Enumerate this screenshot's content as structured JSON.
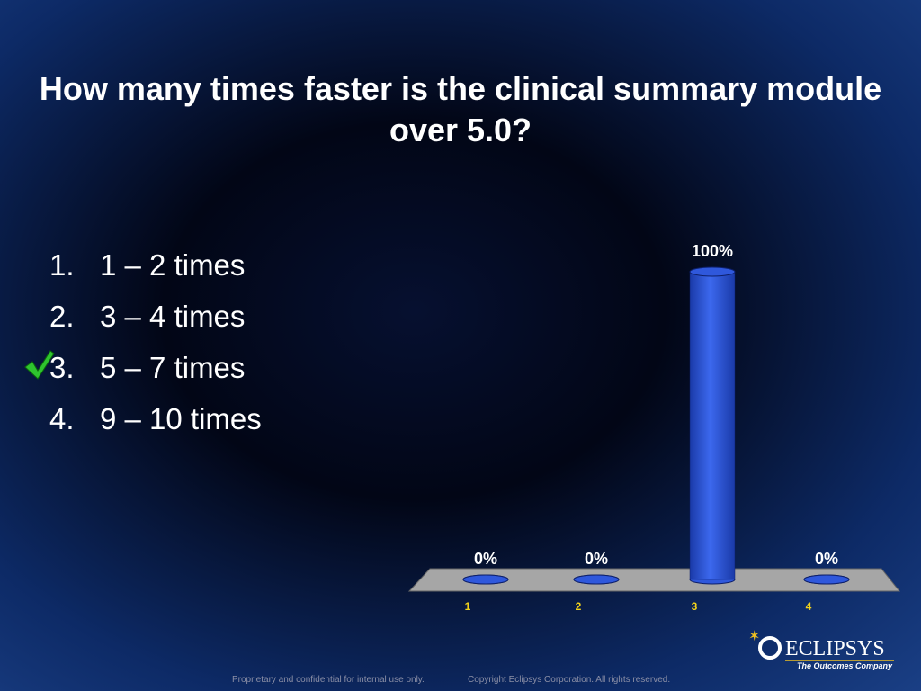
{
  "title": "How many times faster is the clinical summary module over 5.0?",
  "options": [
    {
      "number": "1.",
      "text": "1 – 2 times"
    },
    {
      "number": "2.",
      "text": "3 – 4 times"
    },
    {
      "number": "3.",
      "text": "5 – 7 times"
    },
    {
      "number": "4.",
      "text": "9 – 10 times"
    }
  ],
  "logo": {
    "name": "ECLIPSYS",
    "tagline": "The Outcomes Company"
  },
  "footer": {
    "notice": "Proprietary and confidential for internal use only.",
    "copyright": "Copyright Eclipsys Corporation. All rights reserved."
  },
  "chart_data": {
    "type": "bar",
    "categories": [
      "1",
      "2",
      "3",
      "4"
    ],
    "values": [
      0,
      0,
      100,
      0
    ],
    "value_labels": [
      "0%",
      "0%",
      "100%",
      "0%"
    ],
    "color": "#2f58dc"
  }
}
